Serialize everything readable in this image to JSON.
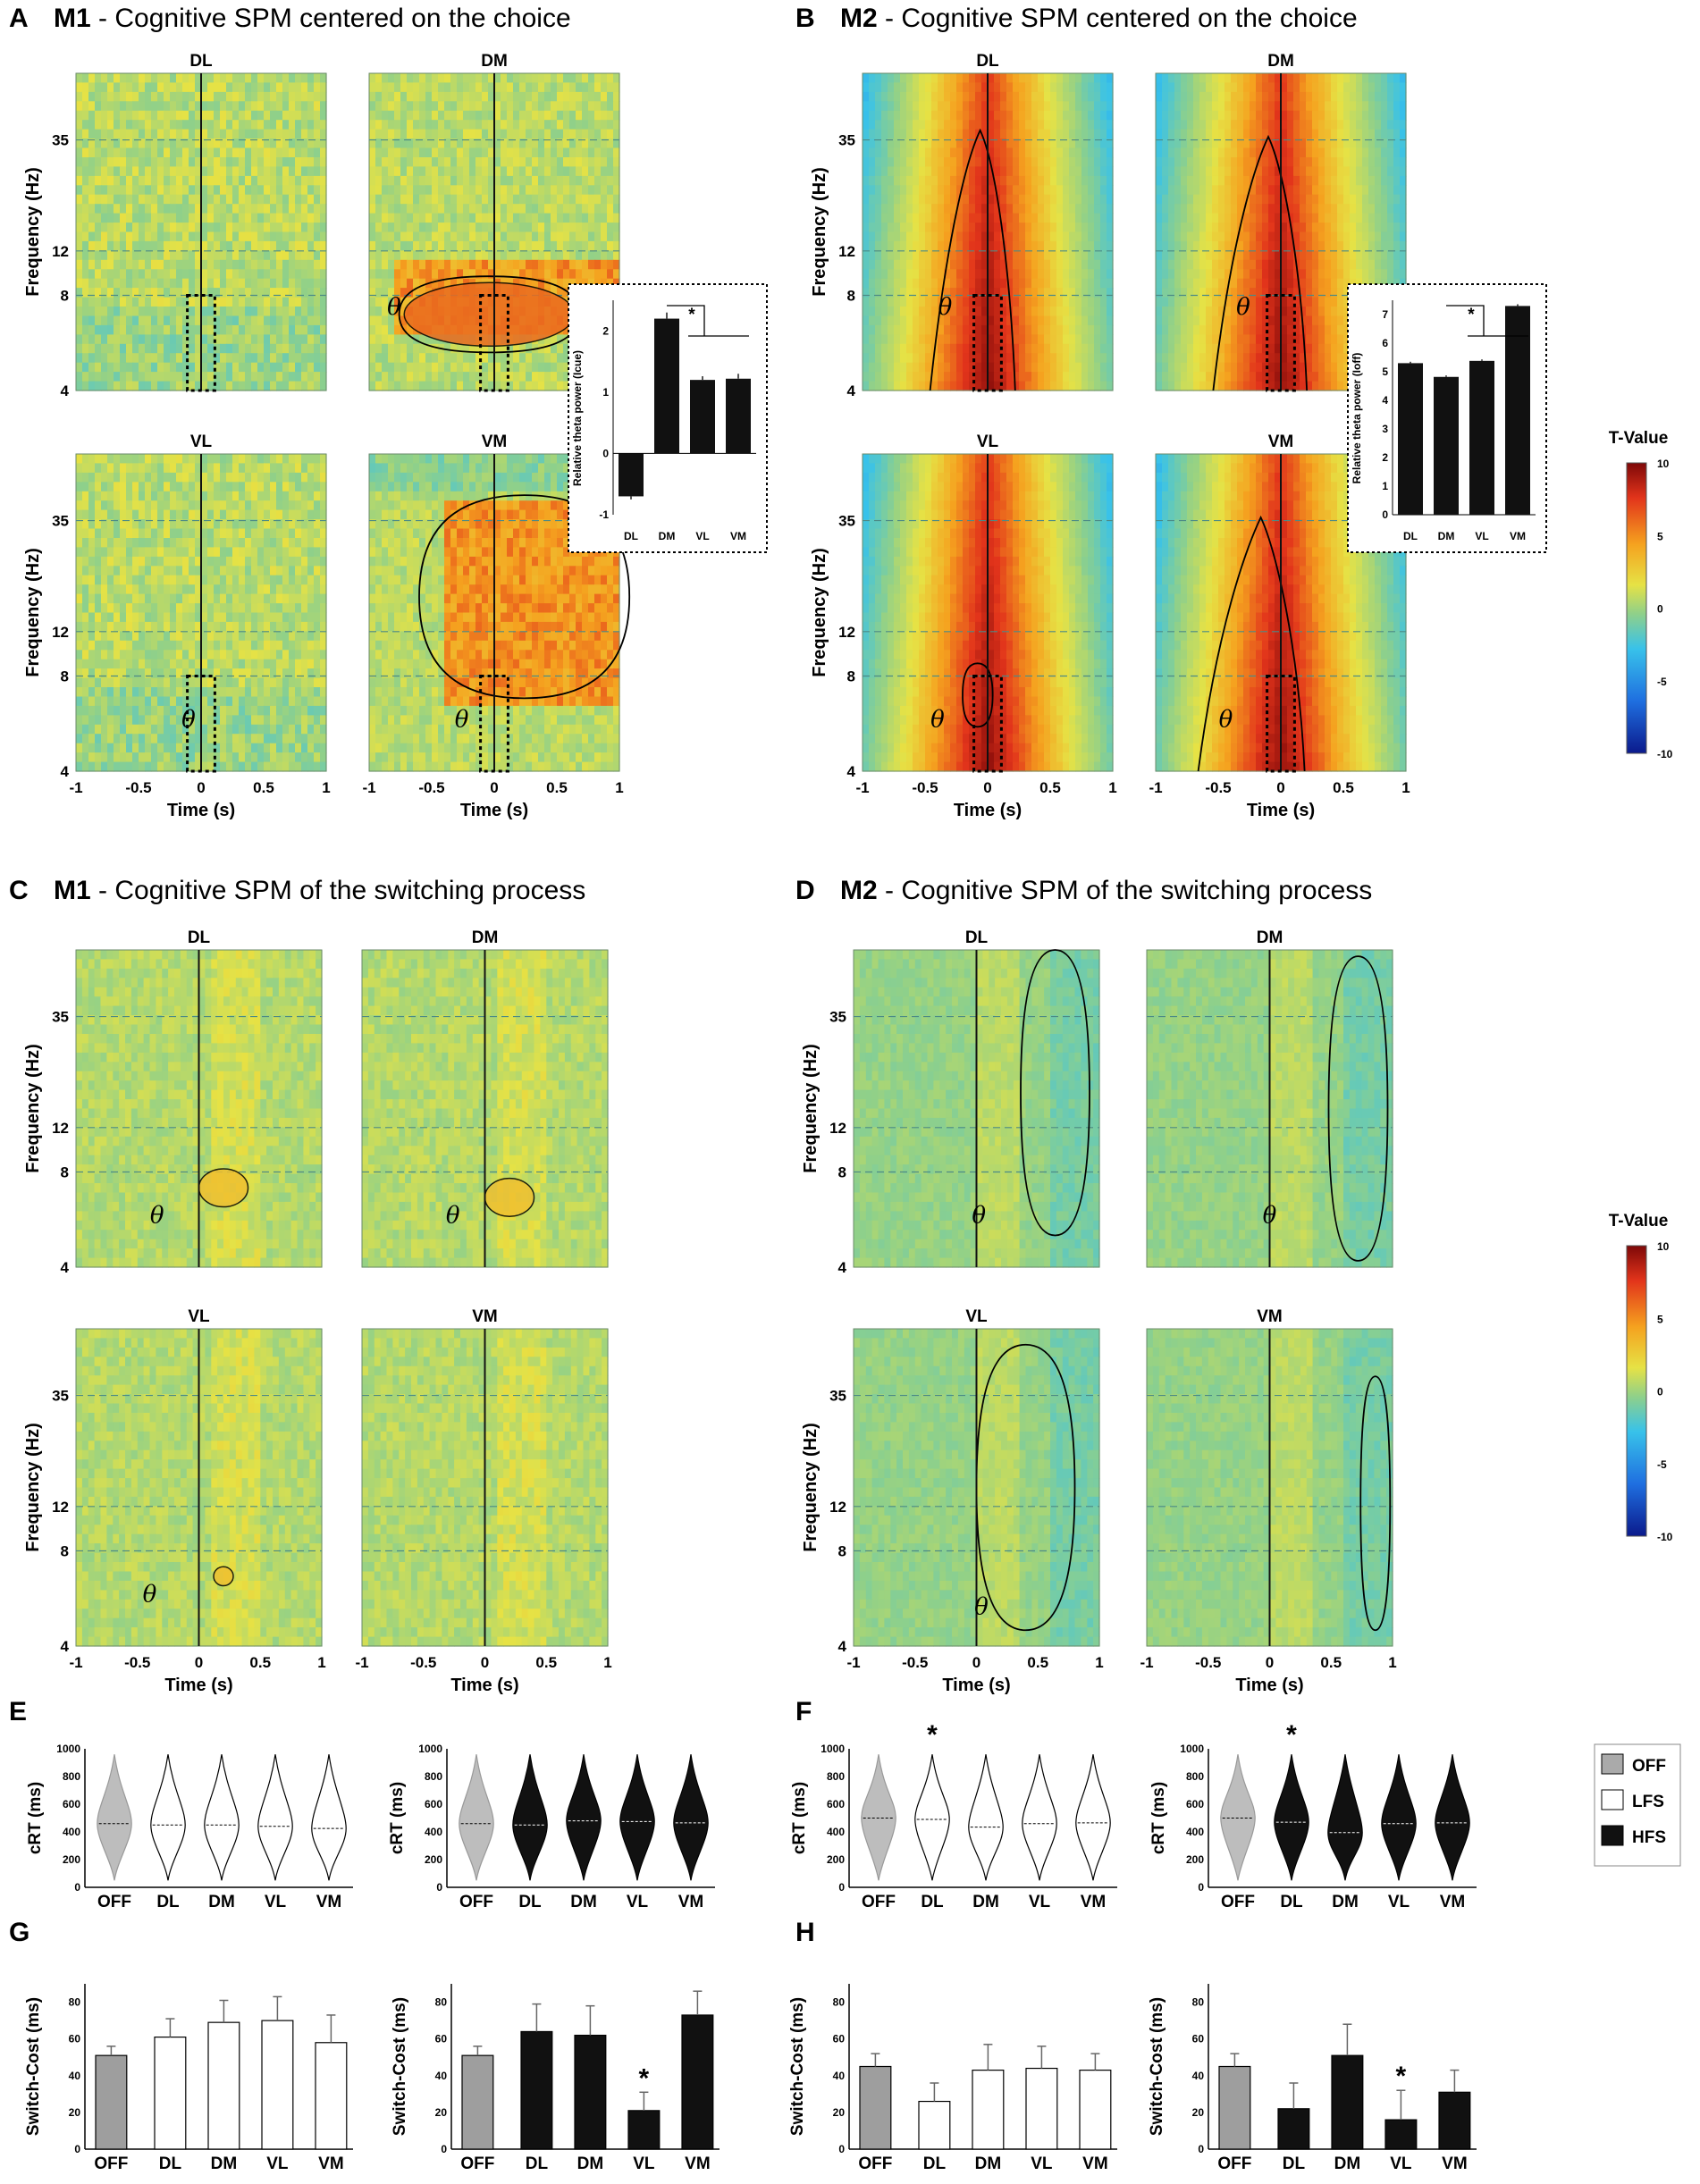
{
  "figure": {
    "colorbar": {
      "label": "T-Value",
      "ticks": [
        "10",
        "5",
        "0",
        "-5",
        "-10"
      ],
      "colors": [
        "#0b1a8c",
        "#1f6fe0",
        "#38c2ea",
        "#8fd08a",
        "#e6e245",
        "#f5a21f",
        "#e2341b",
        "#7e0808"
      ]
    },
    "legend": {
      "items": [
        {
          "label": "OFF",
          "color": "#aaaaaa"
        },
        {
          "label": "LFS",
          "color": "#ffffff"
        },
        {
          "label": "HFS",
          "color": "#111111"
        }
      ]
    },
    "panels": {
      "A": {
        "letter": "A",
        "monkey": "M1",
        "title": " - Cognitive SPM centered on the choice"
      },
      "B": {
        "letter": "B",
        "monkey": "M2",
        "title": " - Cognitive SPM centered on the choice"
      },
      "C": {
        "letter": "C",
        "monkey": "M1",
        "title": " - Cognitive SPM of the switching process"
      },
      "D": {
        "letter": "D",
        "monkey": "M2",
        "title": " - Cognitive SPM of the switching process"
      },
      "E": {
        "letter": "E"
      },
      "F": {
        "letter": "F"
      },
      "G": {
        "letter": "G"
      },
      "H": {
        "letter": "H"
      }
    },
    "spectrogram": {
      "subplots": [
        "DL",
        "DM",
        "VL",
        "VM"
      ],
      "freq_ticks": [
        "35",
        "12",
        "8",
        "4"
      ],
      "time_ticks": [
        "-1",
        "-0.5",
        "0",
        "0.5",
        "1"
      ],
      "ylabel": "Frequency (Hz)",
      "xlabel": "Time (s)",
      "theta": "θ"
    },
    "inset_A": {
      "ylabel": "Relative theta power (I",
      "ylabel_sub": "cue",
      "ylabel_end": ")",
      "yticks": [
        "2",
        "1",
        "0",
        "-1"
      ],
      "star": "*"
    },
    "inset_B": {
      "ylabel": "Relative theta power (I",
      "ylabel_sub": "off",
      "ylabel_end": ")",
      "yticks": [
        "7",
        "6",
        "5",
        "4",
        "3",
        "2",
        "1",
        "0"
      ],
      "star": "*"
    },
    "violin_ylabel": "cRT (ms)",
    "violin_yticks": [
      "1000",
      "800",
      "600",
      "400",
      "200",
      "0"
    ],
    "bar_ylabel": "Switch-Cost (ms)",
    "bar_yticks": [
      "80",
      "60",
      "40",
      "20",
      "0"
    ],
    "categories": [
      "OFF",
      "DL",
      "DM",
      "VL",
      "VM"
    ],
    "star": "*"
  },
  "chart_data": [
    {
      "type": "bar",
      "panel": "A-inset",
      "title": "M1 relative theta power",
      "categories": [
        "DL",
        "DM",
        "VL",
        "VM"
      ],
      "values": [
        -0.7,
        2.2,
        1.2,
        1.22
      ],
      "errors": [
        0.05,
        0.1,
        0.06,
        0.08
      ],
      "ylim": [
        -1,
        2.5
      ],
      "ylabel": "Relative theta power (Icue)"
    },
    {
      "type": "bar",
      "panel": "B-inset",
      "title": "M2 relative theta power",
      "categories": [
        "DL",
        "DM",
        "VL",
        "VM"
      ],
      "values": [
        5.3,
        4.82,
        5.38,
        7.3
      ],
      "errors": [
        0.05,
        0.05,
        0.05,
        0.06
      ],
      "ylim": [
        0,
        7.5
      ],
      "ylabel": "Relative theta power (Ioff)"
    },
    {
      "type": "violin",
      "panel": "E-left",
      "condition": "LFS",
      "categories": [
        "OFF",
        "DL",
        "DM",
        "VL",
        "VM"
      ],
      "medians": [
        460,
        450,
        450,
        440,
        425
      ],
      "ylim": [
        0,
        1000
      ],
      "ylabel": "cRT (ms)"
    },
    {
      "type": "violin",
      "panel": "E-right",
      "condition": "HFS",
      "categories": [
        "OFF",
        "DL",
        "DM",
        "VL",
        "VM"
      ],
      "medians": [
        460,
        450,
        480,
        475,
        465
      ],
      "ylim": [
        0,
        1000
      ],
      "ylabel": "cRT (ms)"
    },
    {
      "type": "violin",
      "panel": "F-left",
      "condition": "LFS",
      "categories": [
        "OFF",
        "DL",
        "DM",
        "VL",
        "VM"
      ],
      "medians": [
        500,
        490,
        435,
        460,
        465
      ],
      "significant": [
        "DL"
      ],
      "ylim": [
        0,
        1000
      ],
      "ylabel": "cRT (ms)"
    },
    {
      "type": "violin",
      "panel": "F-right",
      "condition": "HFS",
      "categories": [
        "OFF",
        "DL",
        "DM",
        "VL",
        "VM"
      ],
      "medians": [
        500,
        470,
        395,
        460,
        465
      ],
      "significant": [
        "DL"
      ],
      "ylim": [
        0,
        1000
      ],
      "ylabel": "cRT (ms)"
    },
    {
      "type": "bar",
      "panel": "G-left",
      "condition": "LFS",
      "categories": [
        "OFF",
        "DL",
        "DM",
        "VL",
        "VM"
      ],
      "values": [
        51,
        61,
        69,
        70,
        58
      ],
      "errors": [
        5,
        10,
        12,
        13,
        15
      ],
      "ylim": [
        0,
        90
      ],
      "ylabel": "Switch-Cost (ms)"
    },
    {
      "type": "bar",
      "panel": "G-right",
      "condition": "HFS",
      "categories": [
        "OFF",
        "DL",
        "DM",
        "VL",
        "VM"
      ],
      "values": [
        51,
        64,
        62,
        21,
        73
      ],
      "errors": [
        5,
        15,
        16,
        10,
        13
      ],
      "significant": [
        "VL"
      ],
      "ylim": [
        0,
        90
      ],
      "ylabel": "Switch-Cost (ms)"
    },
    {
      "type": "bar",
      "panel": "H-left",
      "condition": "LFS",
      "categories": [
        "OFF",
        "DL",
        "DM",
        "VL",
        "VM"
      ],
      "values": [
        45,
        26,
        43,
        44,
        43
      ],
      "errors": [
        7,
        10,
        14,
        12,
        9
      ],
      "ylim": [
        0,
        90
      ],
      "ylabel": "Switch-Cost (ms)"
    },
    {
      "type": "bar",
      "panel": "H-right",
      "condition": "HFS",
      "categories": [
        "OFF",
        "DL",
        "DM",
        "VL",
        "VM"
      ],
      "values": [
        45,
        22,
        51,
        16,
        31
      ],
      "errors": [
        7,
        14,
        17,
        16,
        12
      ],
      "significant": [
        "VL"
      ],
      "ylim": [
        0,
        90
      ],
      "ylabel": "Switch-Cost (ms)"
    }
  ]
}
